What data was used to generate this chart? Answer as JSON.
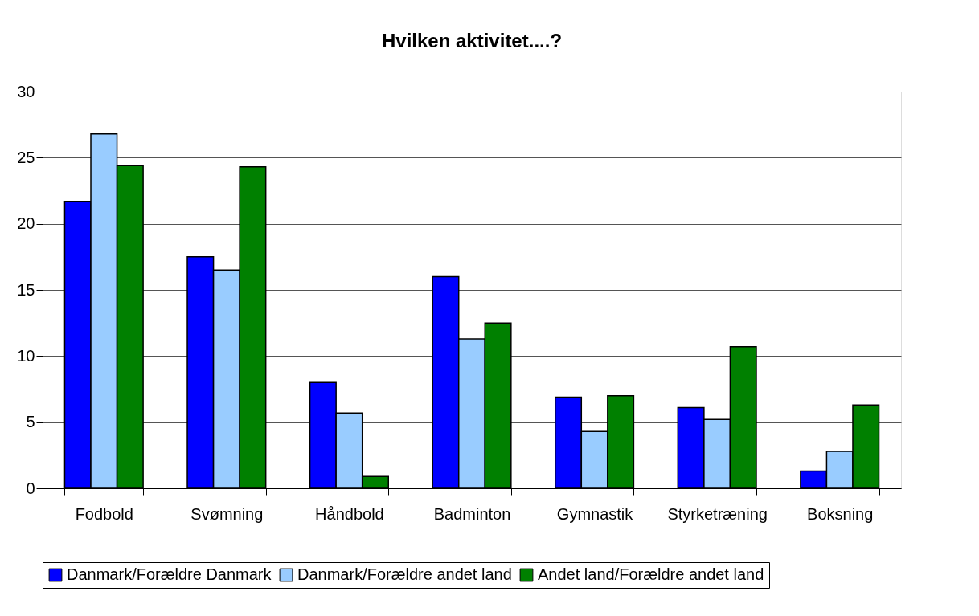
{
  "chart_data": {
    "type": "bar",
    "title": "Hvilken aktivitet....?",
    "categories": [
      "Fodbold",
      "Svømning",
      "Håndbold",
      "Badminton",
      "Gymnastik",
      "Styrketræning",
      "Boksning"
    ],
    "series": [
      {
        "name": "Danmark/Forældre Danmark",
        "color": "#0000ff",
        "values": [
          21.7,
          17.5,
          8.0,
          16.0,
          6.9,
          6.1,
          1.3
        ]
      },
      {
        "name": "Danmark/Forældre andet land",
        "color": "#99ccff",
        "values": [
          26.8,
          16.5,
          5.7,
          11.3,
          4.3,
          5.2,
          2.8
        ]
      },
      {
        "name": "Andet land/Forældre andet land",
        "color": "#008000",
        "values": [
          24.4,
          24.3,
          0.9,
          12.5,
          7.0,
          10.7,
          6.3
        ]
      }
    ],
    "ylim": [
      0,
      30
    ],
    "yticks": [
      0,
      5,
      10,
      15,
      20,
      25,
      30
    ],
    "grid": "y",
    "legend": "bottom"
  }
}
